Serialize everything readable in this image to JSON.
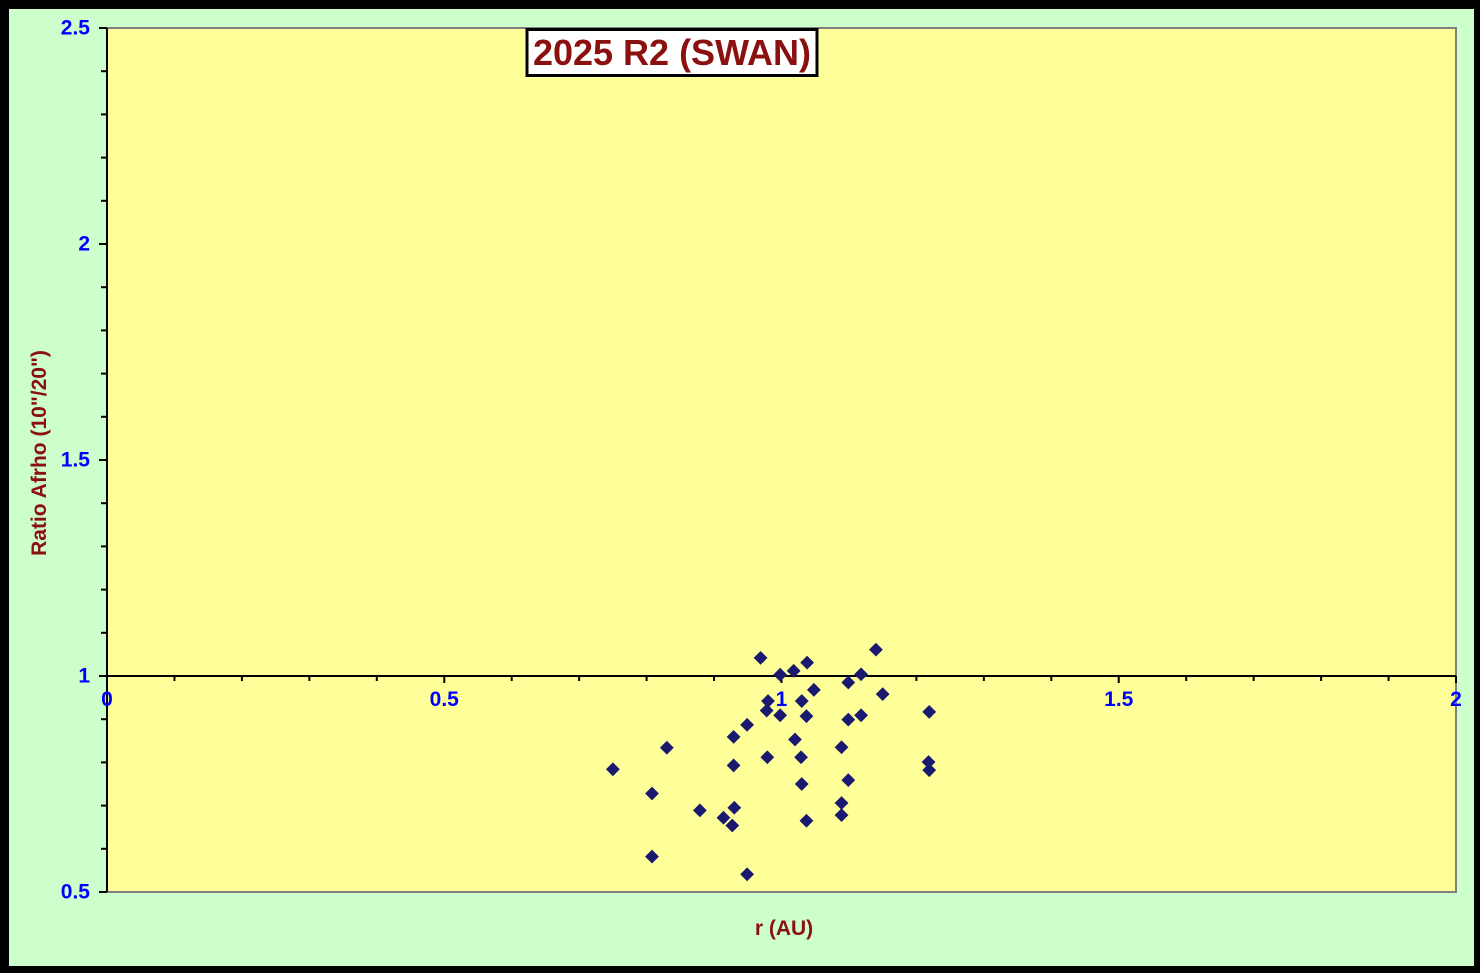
{
  "chart_data": {
    "type": "scatter",
    "title": "2025 R2 (SWAN)",
    "xlabel": "r (AU)",
    "ylabel": "Ratio Afrho (10\"/20\")",
    "xlim": [
      0,
      2
    ],
    "ylim": [
      0.5,
      2.5
    ],
    "x_axis_crosses_at_y": 1,
    "x_major_ticks": [
      0,
      0.5,
      1,
      1.5,
      2
    ],
    "x_major_tick_labels": [
      "0",
      "0.5",
      "1",
      "1.5",
      "2"
    ],
    "x_minor_tick_unit": 0.1,
    "y_major_ticks": [
      0.5,
      1,
      1.5,
      2,
      2.5
    ],
    "y_major_tick_labels": [
      "0.5",
      "1",
      "1.5",
      "2",
      "2.5"
    ],
    "y_minor_tick_unit": 0.1,
    "grid": false,
    "legend_position": "none",
    "series": [
      {
        "name": "Ratio Afrho (10\"/20\")",
        "marker": "diamond",
        "points": [
          {
            "r": 0.75,
            "ratio": 0.784
          },
          {
            "r": 0.808,
            "ratio": 0.582
          },
          {
            "r": 0.808,
            "ratio": 0.728
          },
          {
            "r": 0.83,
            "ratio": 0.834
          },
          {
            "r": 0.879,
            "ratio": 0.689
          },
          {
            "r": 0.914,
            "ratio": 0.672
          },
          {
            "r": 0.927,
            "ratio": 0.654
          },
          {
            "r": 0.929,
            "ratio": 0.793
          },
          {
            "r": 0.929,
            "ratio": 0.859
          },
          {
            "r": 0.93,
            "ratio": 0.695
          },
          {
            "r": 0.949,
            "ratio": 0.541
          },
          {
            "r": 0.949,
            "ratio": 0.887
          },
          {
            "r": 0.969,
            "ratio": 1.042
          },
          {
            "r": 0.978,
            "ratio": 0.92
          },
          {
            "r": 0.979,
            "ratio": 0.812
          },
          {
            "r": 0.98,
            "ratio": 0.942
          },
          {
            "r": 0.998,
            "ratio": 0.909
          },
          {
            "r": 0.998,
            "ratio": 1.003
          },
          {
            "r": 1.018,
            "ratio": 1.012
          },
          {
            "r": 1.02,
            "ratio": 0.853
          },
          {
            "r": 1.029,
            "ratio": 0.812
          },
          {
            "r": 1.03,
            "ratio": 0.75
          },
          {
            "r": 1.03,
            "ratio": 0.942
          },
          {
            "r": 1.037,
            "ratio": 0.665
          },
          {
            "r": 1.037,
            "ratio": 0.907
          },
          {
            "r": 1.038,
            "ratio": 1.031
          },
          {
            "r": 1.048,
            "ratio": 0.968
          },
          {
            "r": 1.089,
            "ratio": 0.678
          },
          {
            "r": 1.089,
            "ratio": 0.706
          },
          {
            "r": 1.089,
            "ratio": 0.835
          },
          {
            "r": 1.099,
            "ratio": 0.759
          },
          {
            "r": 1.099,
            "ratio": 0.899
          },
          {
            "r": 1.099,
            "ratio": 0.985
          },
          {
            "r": 1.118,
            "ratio": 0.909
          },
          {
            "r": 1.118,
            "ratio": 1.004
          },
          {
            "r": 1.14,
            "ratio": 1.061
          },
          {
            "r": 1.15,
            "ratio": 0.958
          },
          {
            "r": 1.218,
            "ratio": 0.801
          },
          {
            "r": 1.219,
            "ratio": 0.782
          },
          {
            "r": 1.219,
            "ratio": 0.917
          }
        ]
      }
    ],
    "colors": {
      "outer_border": "#000000",
      "chart_background": "#CCFFCC",
      "plot_background": "#FFFF99",
      "plot_border": "#808080",
      "axis_line": "#000000",
      "tick_label": "#0000FF",
      "title_text": "#8B1010",
      "axis_title_text": "#8B1010",
      "marker": "#191970",
      "title_box_fill": "#FFFFFF",
      "title_box_border": "#000000"
    }
  }
}
